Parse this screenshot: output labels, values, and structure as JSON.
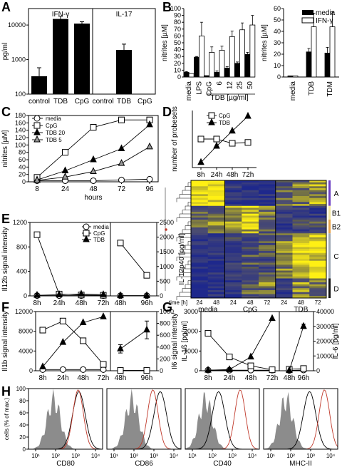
{
  "panel_labels": {
    "A": "A",
    "B": "B",
    "C": "C",
    "D": "D",
    "E": "E",
    "F": "F",
    "G": "G",
    "H": "H"
  },
  "chart_data": [
    {
      "id": "A-left",
      "type": "bar",
      "title": "IFN-γ",
      "ylabel": "pg/ml",
      "yscale": "log",
      "ylim": [
        100,
        30000
      ],
      "yticks": [
        "100",
        "1000",
        "10000"
      ],
      "categories": [
        "control",
        "TDB",
        "CpG"
      ],
      "values": [
        330,
        15000,
        11000
      ],
      "errors": [
        250,
        3000,
        1500
      ]
    },
    {
      "id": "A-right",
      "type": "bar",
      "title": "IL-17",
      "yscale": "log",
      "ylim": [
        100,
        30000
      ],
      "categories": [
        "control",
        "TDB",
        "CpG"
      ],
      "values": [
        100,
        1900,
        100
      ],
      "errors": [
        0,
        900,
        0
      ]
    },
    {
      "id": "B-left",
      "type": "bar",
      "ylabel": "nitrites [µM]",
      "xlabel": "TDB [µg/ml]",
      "ylim": [
        0,
        100
      ],
      "yticks": [
        "0",
        "10",
        "20",
        "30",
        "40",
        "50",
        "60",
        "70",
        "80",
        "90",
        "100"
      ],
      "categories": [
        "media",
        "LPS",
        "CpG",
        "6",
        "12",
        "25",
        "50"
      ],
      "series": [
        {
          "name": "media",
          "values": [
            7,
            29,
            2,
            7,
            13,
            20,
            33
          ],
          "errors": [
            1,
            1,
            0,
            2,
            2,
            2,
            3
          ]
        },
        {
          "name": "IFN-γ",
          "values": [
            5,
            60,
            36,
            39,
            59,
            69,
            76
          ],
          "errors": [
            0,
            20,
            8,
            6,
            8,
            10,
            14
          ]
        }
      ]
    },
    {
      "id": "B-right",
      "type": "bar",
      "ylabel": "nitrites [µM]",
      "ylim": [
        0,
        60
      ],
      "yticks": [
        "0",
        "10",
        "20",
        "30",
        "40",
        "50",
        "60"
      ],
      "categories": [
        "media",
        "TDB",
        "TDM"
      ],
      "legend": {
        "position": "top-right",
        "entries": [
          "media",
          "IFN-γ"
        ]
      },
      "series": [
        {
          "name": "media",
          "values": [
            1,
            22,
            21
          ],
          "errors": [
            0,
            3,
            5
          ]
        },
        {
          "name": "IFN-γ",
          "values": [
            1,
            44,
            44
          ],
          "errors": [
            0,
            12,
            13
          ]
        }
      ]
    },
    {
      "id": "C",
      "type": "line",
      "ylabel": "nitrites [µM]",
      "xlabel": "hours",
      "x": [
        "8",
        "24",
        "48",
        "72",
        "96"
      ],
      "ylim": [
        0,
        180
      ],
      "yticks": [
        "0",
        "20",
        "40",
        "60",
        "80",
        "100",
        "120",
        "140",
        "160",
        "180"
      ],
      "legend": {
        "position": "top-left",
        "entries": [
          "media",
          "CpG",
          "TDB 20",
          "TDB 5"
        ]
      },
      "series": [
        {
          "name": "media",
          "marker": "open-circle",
          "values": [
            3,
            3,
            3,
            5,
            7
          ]
        },
        {
          "name": "CpG",
          "marker": "open-square",
          "values": [
            12,
            80,
            148,
            168,
            168
          ]
        },
        {
          "name": "TDB 20",
          "marker": "filled-triangle",
          "values": [
            5,
            30,
            60,
            90,
            155
          ]
        },
        {
          "name": "TDB 5",
          "marker": "grey-triangle",
          "values": [
            4,
            13,
            28,
            50,
            95
          ]
        }
      ]
    },
    {
      "id": "D-top",
      "type": "line",
      "ylabel": "number of probesets",
      "x": [
        "8h",
        "24h",
        "48h",
        "72h"
      ],
      "legend": {
        "position": "top",
        "entries": [
          "CpG",
          "TDB"
        ]
      },
      "series": [
        {
          "name": "CpG",
          "marker": "open-square",
          "values": [
            100,
            100,
            85,
            88
          ]
        },
        {
          "name": "TDB",
          "marker": "filled-triangle",
          "values": [
            18,
            75,
            128,
            180
          ]
        }
      ]
    },
    {
      "id": "D-heatmap",
      "type": "heatmap",
      "xlabel": "time [h]",
      "groups": [
        "media",
        "CpG",
        "TDB"
      ],
      "time_labels": [
        "24",
        "48",
        "24",
        "48",
        "72",
        "24",
        "48",
        "72"
      ],
      "clusters": [
        "A",
        "B1",
        "B2",
        "C",
        "D"
      ]
    },
    {
      "id": "E",
      "type": "line",
      "ylabel": "Il12b signal intensity",
      "ylim": [
        0,
        1200
      ],
      "yticks": [
        "0",
        "400",
        "800",
        "1200"
      ],
      "x": [
        "8h",
        "24h",
        "48h",
        "72h"
      ],
      "legend": {
        "position": "top-right",
        "entries": [
          "media",
          "CpG",
          "TDB"
        ]
      },
      "series": [
        {
          "name": "media",
          "marker": "open-circle",
          "values": [
            5,
            5,
            5,
            5
          ]
        },
        {
          "name": "CpG",
          "marker": "open-square",
          "values": [
            1000,
            30,
            15,
            10
          ]
        },
        {
          "name": "TDB",
          "marker": "filled-triangle",
          "values": [
            10,
            20,
            30,
            20
          ]
        }
      ]
    },
    {
      "id": "E-right",
      "type": "line",
      "ylabel": "IL-12p40 [pg/ml]",
      "ylim": [
        0,
        2500
      ],
      "yticks": [
        "0",
        "500",
        "1000",
        "1500",
        "2000",
        "2500"
      ],
      "x": [
        "48h",
        "96h"
      ],
      "series": [
        {
          "name": "media",
          "marker": "open-circle",
          "values": [
            5,
            5
          ]
        },
        {
          "name": "CpG",
          "marker": "open-square",
          "values": [
            1800,
            700
          ]
        },
        {
          "name": "TDB",
          "marker": "filled-triangle",
          "values": [
            10,
            10
          ]
        }
      ]
    },
    {
      "id": "F",
      "type": "line",
      "ylabel": "Il1b signal intensity",
      "ylim": [
        0,
        15000
      ],
      "yticks": [
        "0",
        "4000",
        "8000",
        "12000"
      ],
      "x": [
        "8h",
        "24h",
        "48h",
        "72h"
      ],
      "series": [
        {
          "name": "media",
          "marker": "open-circle",
          "values": [
            300,
            300,
            300,
            300
          ]
        },
        {
          "name": "CpG",
          "marker": "open-square",
          "values": [
            10300,
            12600,
            7600,
            1600
          ]
        },
        {
          "name": "TDB",
          "marker": "filled-triangle",
          "values": [
            1000,
            7200,
            12200,
            13700
          ]
        }
      ]
    },
    {
      "id": "F-right",
      "type": "line",
      "ylabel": "IL-1ß [pg/ml]",
      "ylim": [
        0,
        1000
      ],
      "yticks": [
        "0",
        "200",
        "400",
        "600",
        "800",
        "1000"
      ],
      "x": [
        "48h",
        "96h"
      ],
      "series": [
        {
          "name": "media",
          "marker": "open-circle",
          "values": [
            5,
            5
          ]
        },
        {
          "name": "CpG",
          "marker": "open-square",
          "values": [
            5,
            5
          ]
        },
        {
          "name": "TDB",
          "marker": "filled-triangle",
          "values": [
            370,
            690
          ],
          "errors": [
            70,
            150
          ]
        }
      ]
    },
    {
      "id": "G",
      "type": "line",
      "ylabel": "Il6 signal intensity",
      "ylim": [
        0,
        3000
      ],
      "yticks": [
        "0",
        "1000",
        "2000",
        "3000"
      ],
      "x": [
        "8h",
        "24h",
        "48h",
        "72h"
      ],
      "series": [
        {
          "name": "media",
          "marker": "open-circle",
          "values": [
            30,
            30,
            30,
            30
          ]
        },
        {
          "name": "CpG",
          "marker": "open-square",
          "values": [
            1900,
            700,
            250,
            50
          ]
        },
        {
          "name": "TDB",
          "marker": "filled-triangle",
          "values": [
            30,
            60,
            700,
            2650
          ]
        }
      ]
    },
    {
      "id": "G-right",
      "type": "line",
      "ylabel": "IL-6 [pg/ml]",
      "ylim": [
        0,
        40000
      ],
      "yticks": [
        "0",
        "10000",
        "20000",
        "30000",
        "40000"
      ],
      "x": [
        "48h",
        "96h"
      ],
      "series": [
        {
          "name": "media",
          "marker": "open-circle",
          "values": [
            200,
            500
          ]
        },
        {
          "name": "CpG",
          "marker": "open-square",
          "values": [
            1000,
            1500
          ]
        },
        {
          "name": "TDB",
          "marker": "filled-triangle",
          "values": [
            200,
            30000
          ],
          "errors": [
            0,
            1500
          ]
        }
      ]
    },
    {
      "id": "H",
      "type": "area",
      "ylabel": "cells (% of max.)",
      "ylim": [
        0,
        100
      ],
      "yticks": [
        "0",
        "20",
        "40",
        "60",
        "80",
        "100"
      ],
      "xscale": "log",
      "xticks": [
        "10¹",
        "10²",
        "10³",
        "10⁴"
      ],
      "panels": [
        "CD80",
        "CD86",
        "CD40",
        "MHC-II"
      ],
      "legend_colors": {
        "isotype": "#8c8c8c",
        "media": "#000000",
        "TDB": "#c0392b"
      }
    }
  ],
  "colors": {
    "filled": "#000000",
    "open": "#ffffff",
    "grey": "#999999",
    "red": "#c0392b",
    "isotype": "#8c8c8c"
  }
}
